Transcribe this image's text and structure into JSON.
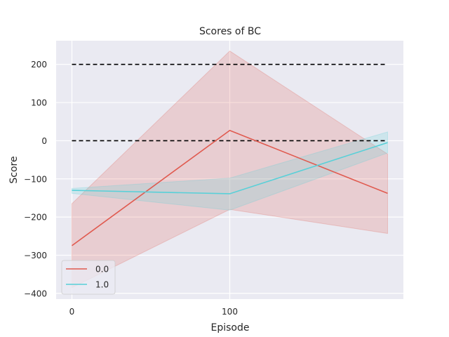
{
  "chart_data": {
    "type": "line",
    "title": "Scores of BC",
    "xlabel": "Episode",
    "ylabel": "Score",
    "xlim": [
      -10,
      210
    ],
    "ylim": [
      -415,
      262
    ],
    "xticks": [
      0,
      100
    ],
    "xtick_labels": [
      "0",
      "100"
    ],
    "yticks": [
      -400,
      -300,
      -200,
      -100,
      0,
      100,
      200
    ],
    "ytick_labels": [
      "−400",
      "−300",
      "−200",
      "−100",
      "0",
      "100",
      "200"
    ],
    "grid": true,
    "legend_placement": "lower-left",
    "x": [
      0,
      100,
      200
    ],
    "series": [
      {
        "name": "0.0",
        "color": "#e05a4f",
        "values": [
          -275,
          27,
          -138
        ],
        "band_lower": [
          -385,
          -180,
          -243
        ],
        "band_upper": [
          -165,
          235,
          -35
        ]
      },
      {
        "name": "1.0",
        "color": "#58d0d8",
        "values": [
          -130,
          -139,
          -5
        ],
        "band_lower": [
          -138,
          -182,
          -32
        ],
        "band_upper": [
          -125,
          -98,
          23
        ]
      }
    ],
    "reference_lines": [
      {
        "y": 200,
        "style": "dashed",
        "color": "#000000"
      },
      {
        "y": 0,
        "style": "dashed",
        "color": "#000000"
      }
    ],
    "background_color": "#eaeaf2"
  }
}
